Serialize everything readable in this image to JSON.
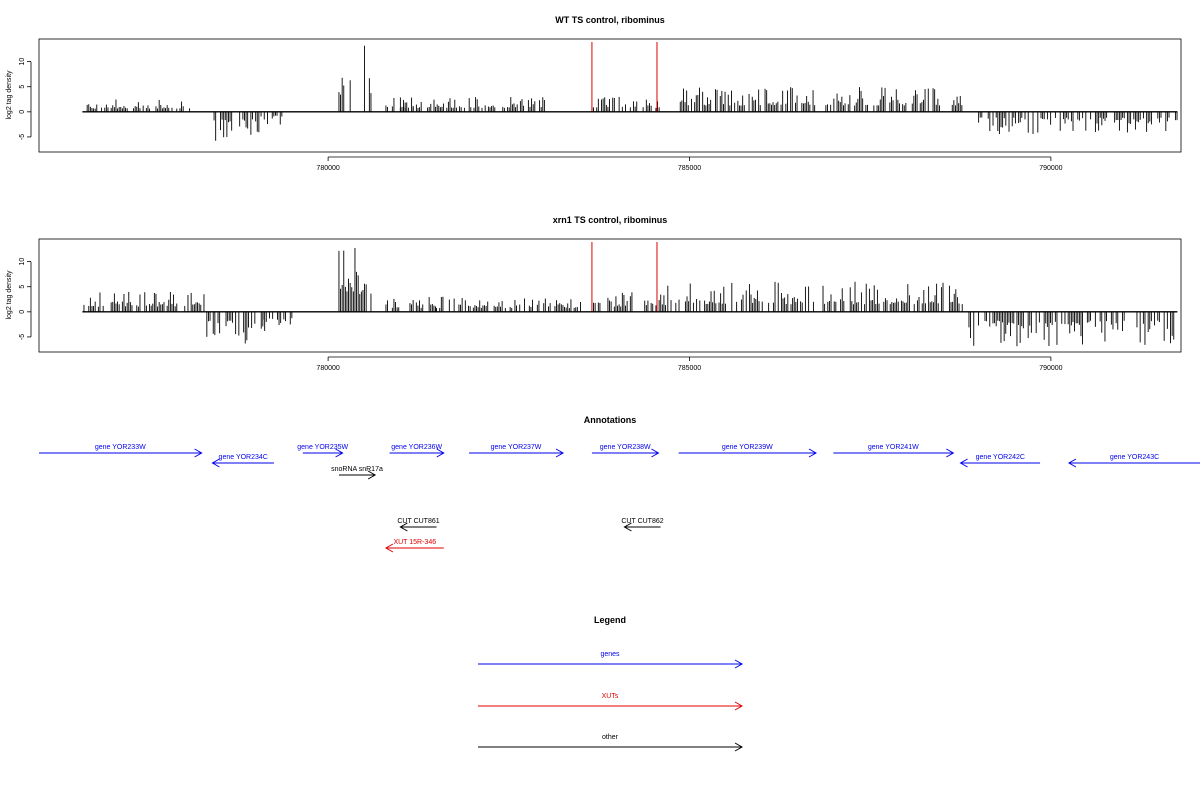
{
  "chart_data": [
    {
      "type": "bar",
      "title": "WT TS control, ribominus",
      "ylabel": "log2 tag density",
      "xlabel": "",
      "xlim": [
        776000,
        791800
      ],
      "ylim": [
        -8,
        14.5
      ],
      "x_ticks": [
        780000,
        785000,
        790000
      ],
      "x_tick_labels": [
        "780000",
        "785000",
        "790000"
      ],
      "y_ticks": [
        -5,
        0,
        5,
        10
      ],
      "y_tick_labels": [
        "-5",
        "0",
        "5",
        "10"
      ],
      "marker_lines": [
        783650,
        784550
      ],
      "marker_color": "#e00000",
      "bar_color": "#000000",
      "approx_profile": [
        {
          "start": 776600,
          "end": 778100,
          "strand": "+",
          "max": 2.5
        },
        {
          "start": 778400,
          "end": 779050,
          "strand": "-",
          "max": 6
        },
        {
          "start": 779050,
          "end": 779400,
          "strand": "-",
          "max": 3
        },
        {
          "start": 780150,
          "end": 780600,
          "strand": "+",
          "max": 13.5
        },
        {
          "start": 780800,
          "end": 781200,
          "strand": "+",
          "max": 3
        },
        {
          "start": 781000,
          "end": 783000,
          "strand": "+",
          "max": 3
        },
        {
          "start": 783650,
          "end": 784600,
          "strand": "+",
          "max": 3
        },
        {
          "start": 784850,
          "end": 788800,
          "strand": "+",
          "max": 5
        },
        {
          "start": 789000,
          "end": 791750,
          "strand": "-",
          "max": 4.5
        }
      ]
    },
    {
      "type": "bar",
      "title": "xrn1 TS control, ribominus",
      "ylabel": "log2 tag density",
      "xlabel": "",
      "xlim": [
        776000,
        791800
      ],
      "ylim": [
        -8,
        14.5
      ],
      "x_ticks": [
        780000,
        785000,
        790000
      ],
      "x_tick_labels": [
        "780000",
        "785000",
        "790000"
      ],
      "y_ticks": [
        -5,
        0,
        5,
        10
      ],
      "y_tick_labels": [
        "-5",
        "0",
        "5",
        "10"
      ],
      "marker_lines": [
        783650,
        784550
      ],
      "marker_color": "#e00000",
      "bar_color": "#000000",
      "approx_profile": [
        {
          "start": 776600,
          "end": 778300,
          "strand": "+",
          "max": 4
        },
        {
          "start": 778300,
          "end": 779100,
          "strand": "-",
          "max": 7
        },
        {
          "start": 779100,
          "end": 779500,
          "strand": "-",
          "max": 4
        },
        {
          "start": 780150,
          "end": 780600,
          "strand": "+",
          "max": 13.5
        },
        {
          "start": 780800,
          "end": 781500,
          "strand": "+",
          "max": 3
        },
        {
          "start": 781500,
          "end": 783500,
          "strand": "+",
          "max": 3
        },
        {
          "start": 783650,
          "end": 784700,
          "strand": "+",
          "max": 4
        },
        {
          "start": 784700,
          "end": 788800,
          "strand": "+",
          "max": 6
        },
        {
          "start": 788800,
          "end": 791750,
          "strand": "-",
          "max": 7
        }
      ]
    }
  ],
  "annotations": {
    "title": "Annotations",
    "features": [
      {
        "label": "gene YOR233W",
        "start": 776000,
        "end": 778250,
        "strand": "+",
        "kind": "gene",
        "row": 0
      },
      {
        "label": "gene YOR234C",
        "start": 778400,
        "end": 779250,
        "strand": "-",
        "kind": "gene",
        "row": 1
      },
      {
        "label": "gene YOR235W",
        "start": 779650,
        "end": 780200,
        "strand": "+",
        "kind": "gene",
        "row": 0
      },
      {
        "label": "snoRNA snR17a",
        "start": 780150,
        "end": 780650,
        "strand": "+",
        "kind": "other",
        "row": 2
      },
      {
        "label": "gene YOR236W",
        "start": 780850,
        "end": 781600,
        "strand": "+",
        "kind": "gene",
        "row": 0
      },
      {
        "label": "gene YOR237W",
        "start": 781950,
        "end": 783250,
        "strand": "+",
        "kind": "gene",
        "row": 0
      },
      {
        "label": "gene YOR238W",
        "start": 783650,
        "end": 784570,
        "strand": "+",
        "kind": "gene",
        "row": 0
      },
      {
        "label": "gene YOR239W",
        "start": 784850,
        "end": 786750,
        "strand": "+",
        "kind": "gene",
        "row": 0
      },
      {
        "label": "gene YOR241W",
        "start": 786990,
        "end": 788650,
        "strand": "+",
        "kind": "gene",
        "row": 0
      },
      {
        "label": "gene YOR242C",
        "start": 788750,
        "end": 789850,
        "strand": "-",
        "kind": "gene",
        "row": 1
      },
      {
        "label": "gene YOR243C",
        "start": 790250,
        "end": 792250,
        "strand": "-",
        "kind": "gene",
        "row": 1
      },
      {
        "label": "CUT CUT861",
        "start": 781000,
        "end": 781500,
        "strand": "-",
        "kind": "other",
        "row": 3
      },
      {
        "label": "CUT CUT862",
        "start": 784100,
        "end": 784600,
        "strand": "-",
        "kind": "other",
        "row": 3
      },
      {
        "label": "XUT 15R-346",
        "start": 780800,
        "end": 781600,
        "strand": "-",
        "kind": "xut",
        "row": 4
      }
    ]
  },
  "legend": {
    "title": "Legend",
    "items": [
      {
        "label": "genes",
        "kind": "gene"
      },
      {
        "label": "XUTs",
        "kind": "xut"
      },
      {
        "label": "other",
        "kind": "other"
      }
    ]
  },
  "colors": {
    "gene": "#0000ee",
    "xut": "#e00000",
    "other": "#000000"
  }
}
